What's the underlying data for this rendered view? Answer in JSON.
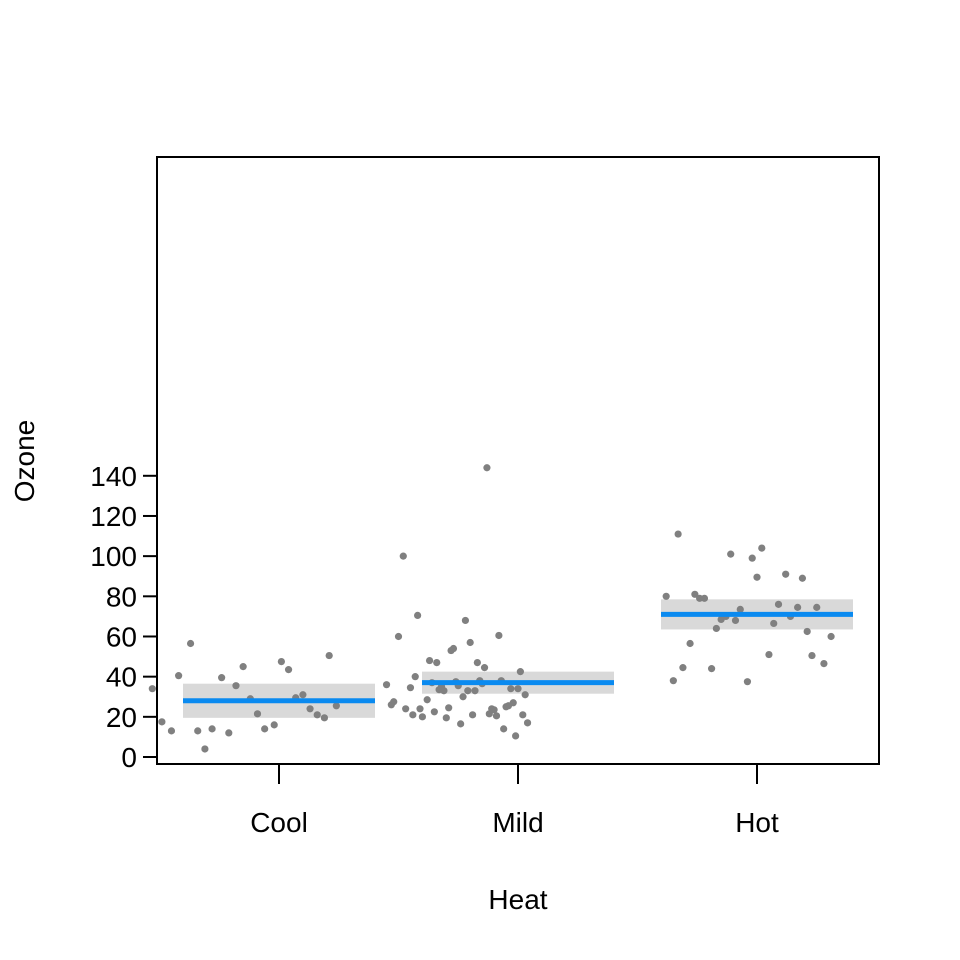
{
  "chart_data": {
    "type": "scatter",
    "title": "",
    "xlabel": "Heat",
    "ylabel": "Ozone",
    "categories": [
      "Cool",
      "Mild",
      "Hot"
    ],
    "ylim": [
      -2,
      149
    ],
    "yticks": [
      0,
      20,
      40,
      60,
      80,
      100,
      120,
      140
    ],
    "grid": false,
    "legend": "none",
    "colors": {
      "points": "#808080",
      "fit": "#0a8af0",
      "band": "#d9d9d9",
      "frame": "#000000"
    },
    "group_means": [
      {
        "category": "Cool",
        "mean": 28,
        "ci_low": 19.5,
        "ci_high": 36.5
      },
      {
        "category": "Mild",
        "mean": 37,
        "ci_low": 31.5,
        "ci_high": 42.5
      },
      {
        "category": "Hot",
        "mean": 71,
        "ci_low": 63.5,
        "ci_high": 78.5
      }
    ],
    "points": [
      {
        "x": 0.47,
        "y": 34
      },
      {
        "x": 0.51,
        "y": 17.5
      },
      {
        "x": 0.55,
        "y": 13
      },
      {
        "x": 0.58,
        "y": 40.5
      },
      {
        "x": 0.63,
        "y": 56.5
      },
      {
        "x": 0.66,
        "y": 13
      },
      {
        "x": 0.69,
        "y": 4
      },
      {
        "x": 0.72,
        "y": 14
      },
      {
        "x": 0.76,
        "y": 39.5
      },
      {
        "x": 0.79,
        "y": 12
      },
      {
        "x": 0.82,
        "y": 35.5
      },
      {
        "x": 0.85,
        "y": 45
      },
      {
        "x": 0.88,
        "y": 29
      },
      {
        "x": 0.91,
        "y": 21.5
      },
      {
        "x": 0.94,
        "y": 14
      },
      {
        "x": 0.98,
        "y": 16
      },
      {
        "x": 1.01,
        "y": 47.5
      },
      {
        "x": 1.04,
        "y": 43.5
      },
      {
        "x": 1.07,
        "y": 29.5
      },
      {
        "x": 1.1,
        "y": 31
      },
      {
        "x": 1.13,
        "y": 24
      },
      {
        "x": 1.16,
        "y": 21
      },
      {
        "x": 1.19,
        "y": 19.5
      },
      {
        "x": 1.21,
        "y": 50.5
      },
      {
        "x": 1.24,
        "y": 25.5
      },
      {
        "x": 1.45,
        "y": 36
      },
      {
        "x": 1.47,
        "y": 26
      },
      {
        "x": 1.48,
        "y": 27.5
      },
      {
        "x": 1.5,
        "y": 60
      },
      {
        "x": 1.52,
        "y": 100
      },
      {
        "x": 1.53,
        "y": 24
      },
      {
        "x": 1.55,
        "y": 34.5
      },
      {
        "x": 1.56,
        "y": 21
      },
      {
        "x": 1.57,
        "y": 40
      },
      {
        "x": 1.58,
        "y": 70.5
      },
      {
        "x": 1.59,
        "y": 24
      },
      {
        "x": 1.6,
        "y": 20
      },
      {
        "x": 1.62,
        "y": 28.5
      },
      {
        "x": 1.63,
        "y": 48
      },
      {
        "x": 1.64,
        "y": 37
      },
      {
        "x": 1.65,
        "y": 22.5
      },
      {
        "x": 1.66,
        "y": 47
      },
      {
        "x": 1.67,
        "y": 33.5
      },
      {
        "x": 1.68,
        "y": 35
      },
      {
        "x": 1.69,
        "y": 33
      },
      {
        "x": 1.7,
        "y": 19.5
      },
      {
        "x": 1.71,
        "y": 24.5
      },
      {
        "x": 1.72,
        "y": 53
      },
      {
        "x": 1.73,
        "y": 54
      },
      {
        "x": 1.74,
        "y": 37.5
      },
      {
        "x": 1.75,
        "y": 35.5
      },
      {
        "x": 1.76,
        "y": 16.5
      },
      {
        "x": 1.77,
        "y": 30
      },
      {
        "x": 1.78,
        "y": 68
      },
      {
        "x": 1.79,
        "y": 33
      },
      {
        "x": 1.8,
        "y": 57
      },
      {
        "x": 1.81,
        "y": 21
      },
      {
        "x": 1.82,
        "y": 33
      },
      {
        "x": 1.83,
        "y": 47
      },
      {
        "x": 1.84,
        "y": 38
      },
      {
        "x": 1.85,
        "y": 36.5
      },
      {
        "x": 1.86,
        "y": 44.5
      },
      {
        "x": 1.87,
        "y": 144
      },
      {
        "x": 1.88,
        "y": 21.5
      },
      {
        "x": 1.89,
        "y": 24
      },
      {
        "x": 1.9,
        "y": 23.5
      },
      {
        "x": 1.91,
        "y": 20.5
      },
      {
        "x": 1.92,
        "y": 60.5
      },
      {
        "x": 1.93,
        "y": 38
      },
      {
        "x": 1.94,
        "y": 14
      },
      {
        "x": 1.95,
        "y": 25
      },
      {
        "x": 1.96,
        "y": 25.5
      },
      {
        "x": 1.97,
        "y": 34
      },
      {
        "x": 1.98,
        "y": 27
      },
      {
        "x": 1.99,
        "y": 10.5
      },
      {
        "x": 2.0,
        "y": 34
      },
      {
        "x": 2.01,
        "y": 42.5
      },
      {
        "x": 2.02,
        "y": 21
      },
      {
        "x": 2.03,
        "y": 31
      },
      {
        "x": 2.04,
        "y": 17
      },
      {
        "x": 2.62,
        "y": 80
      },
      {
        "x": 2.65,
        "y": 38
      },
      {
        "x": 2.67,
        "y": 111
      },
      {
        "x": 2.69,
        "y": 44.5
      },
      {
        "x": 2.72,
        "y": 56.5
      },
      {
        "x": 2.74,
        "y": 81
      },
      {
        "x": 2.76,
        "y": 79
      },
      {
        "x": 2.78,
        "y": 79
      },
      {
        "x": 2.81,
        "y": 44
      },
      {
        "x": 2.83,
        "y": 64
      },
      {
        "x": 2.85,
        "y": 68.5
      },
      {
        "x": 2.87,
        "y": 70
      },
      {
        "x": 2.89,
        "y": 101
      },
      {
        "x": 2.91,
        "y": 68
      },
      {
        "x": 2.93,
        "y": 73.5
      },
      {
        "x": 2.96,
        "y": 37.5
      },
      {
        "x": 2.98,
        "y": 99
      },
      {
        "x": 3.0,
        "y": 89.5
      },
      {
        "x": 3.02,
        "y": 104
      },
      {
        "x": 3.05,
        "y": 51
      },
      {
        "x": 3.07,
        "y": 66.5
      },
      {
        "x": 3.09,
        "y": 76
      },
      {
        "x": 3.12,
        "y": 91
      },
      {
        "x": 3.14,
        "y": 70
      },
      {
        "x": 3.17,
        "y": 74.5
      },
      {
        "x": 3.19,
        "y": 89
      },
      {
        "x": 3.21,
        "y": 62.5
      },
      {
        "x": 3.23,
        "y": 50.5
      },
      {
        "x": 3.25,
        "y": 74.5
      },
      {
        "x": 3.28,
        "y": 46.5
      },
      {
        "x": 3.31,
        "y": 60
      }
    ]
  }
}
